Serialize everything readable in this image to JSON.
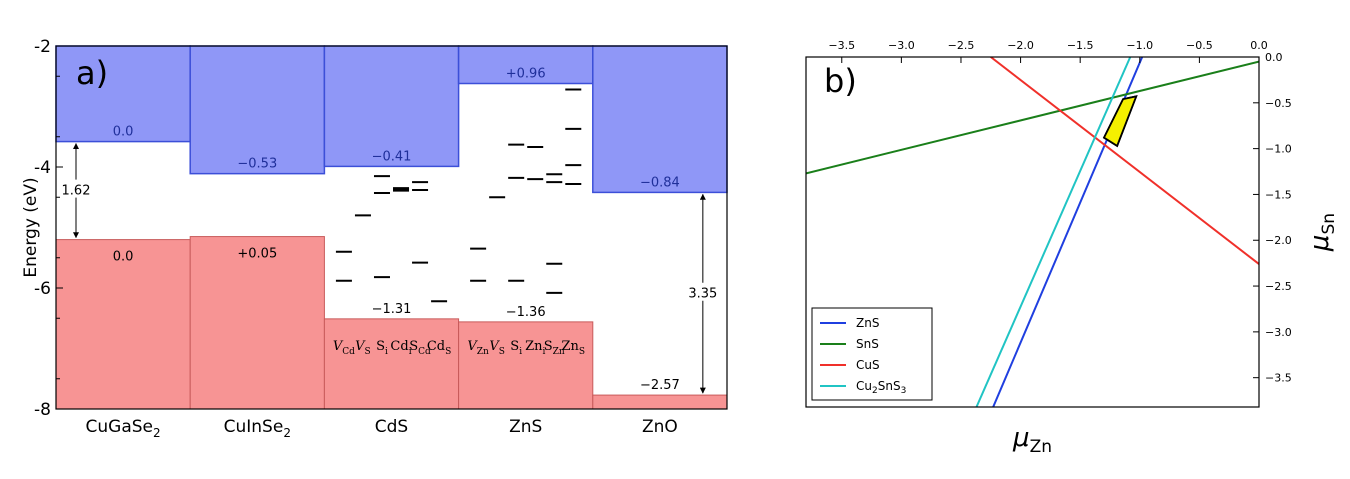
{
  "chart_data": [
    {
      "type": "bar",
      "panel_label": "a)",
      "ylabel": "Energy (eV)",
      "ylim": [
        -8,
        -2
      ],
      "yticks": [
        "-8",
        "-6",
        "-4",
        "-2"
      ],
      "grid": false,
      "colors": {
        "cb": "#8f97f7",
        "cb_edge": "#3c4fd8",
        "vb": "#f79494",
        "vb_edge": "#c85a5a"
      },
      "materials": [
        {
          "name": "CuGaSe",
          "sub": "2",
          "cb": -3.58,
          "vb": -5.2,
          "cb_label": "0.0",
          "vb_label": "0.0"
        },
        {
          "name": "CuInSe",
          "sub": "2",
          "cb": -4.11,
          "vb": -5.15,
          "cb_label": "−0.53",
          "vb_label": "+0.05"
        },
        {
          "name": "CdS",
          "sub": "",
          "cb": -3.99,
          "vb": -6.51,
          "cb_label": "−0.41",
          "vb_label": "−1.31"
        },
        {
          "name": "ZnS",
          "sub": "",
          "cb": -2.62,
          "vb": -6.56,
          "cb_label": "+0.96",
          "vb_label": "−1.36"
        },
        {
          "name": "ZnO",
          "sub": "",
          "cb": -4.42,
          "vb": -7.77,
          "cb_label": "−0.84",
          "vb_label": "−2.57"
        }
      ],
      "gap_annotations": [
        {
          "label": "1.62",
          "material": 0,
          "from": -3.58,
          "to": -5.2
        },
        {
          "label": "3.35",
          "material": 4,
          "from": -4.42,
          "to": -7.77
        }
      ],
      "defect_levels": [
        {
          "material": 2,
          "slot": 0,
          "levels": [
            -5.4,
            -5.88
          ]
        },
        {
          "material": 2,
          "slot": 1,
          "levels": [
            -4.8
          ]
        },
        {
          "material": 2,
          "slot": 2,
          "levels": [
            -4.15,
            -4.43,
            -5.82
          ]
        },
        {
          "material": 2,
          "slot": 3,
          "levels": [
            -4.35,
            -4.37,
            -4.39
          ]
        },
        {
          "material": 2,
          "slot": 4,
          "levels": [
            -4.25,
            -4.38,
            -5.58
          ]
        },
        {
          "material": 2,
          "slot": 5,
          "levels": [
            -6.22
          ]
        },
        {
          "material": 3,
          "slot": 0,
          "levels": [
            -5.35,
            -5.88
          ]
        },
        {
          "material": 3,
          "slot": 1,
          "levels": [
            -4.5
          ]
        },
        {
          "material": 3,
          "slot": 2,
          "levels": [
            -3.63,
            -4.18,
            -5.88
          ]
        },
        {
          "material": 3,
          "slot": 3,
          "levels": [
            -3.67,
            -4.2
          ]
        },
        {
          "material": 3,
          "slot": 4,
          "levels": [
            -4.12,
            -4.25,
            -5.6,
            -6.08
          ]
        },
        {
          "material": 3,
          "slot": 5,
          "levels": [
            -2.72,
            -3.37,
            -3.97,
            -4.28
          ]
        }
      ],
      "defect_labels": [
        {
          "material": 2,
          "items": [
            {
              "text": "V",
              "sub": "Cd",
              "italic": true
            },
            {
              "text": "V",
              "sub": "S",
              "italic": true
            },
            {
              "text": "S",
              "sub": "i",
              "italic": false
            },
            {
              "text": "Cd",
              "sub": "i",
              "italic": false
            },
            {
              "text": "S",
              "sub": "Cd",
              "italic": false
            },
            {
              "text": "Cd",
              "sub": "S",
              "italic": false
            }
          ]
        },
        {
          "material": 3,
          "items": [
            {
              "text": "V",
              "sub": "Zn",
              "italic": true
            },
            {
              "text": "V",
              "sub": "S",
              "italic": true
            },
            {
              "text": "S",
              "sub": "i",
              "italic": false
            },
            {
              "text": "Zn",
              "sub": "i",
              "italic": false
            },
            {
              "text": "S",
              "sub": "Zn",
              "italic": false
            },
            {
              "text": "Zn",
              "sub": "S",
              "italic": false
            }
          ]
        }
      ]
    },
    {
      "type": "line",
      "panel_label": "b)",
      "xlabel": {
        "main": "μ",
        "sub": "Zn"
      },
      "ylabel": {
        "main": "μ",
        "sub": "Sn"
      },
      "xlim": [
        -3.8,
        0.0
      ],
      "ylim": [
        -3.82,
        0.0
      ],
      "xticks": [
        {
          "v": -3.5,
          "label": "−3.5"
        },
        {
          "v": -3.0,
          "label": "−3.0"
        },
        {
          "v": -2.5,
          "label": "−2.5"
        },
        {
          "v": -2.0,
          "label": "−2.0"
        },
        {
          "v": -1.5,
          "label": "−1.5"
        },
        {
          "v": -1.0,
          "label": "−1.0"
        },
        {
          "v": -0.5,
          "label": "−0.5"
        },
        {
          "v": 0.0,
          "label": "0.0"
        }
      ],
      "yticks": [
        {
          "v": 0.0,
          "label": "0.0"
        },
        {
          "v": -0.5,
          "label": "−0.5"
        },
        {
          "v": -1.0,
          "label": "−1.0"
        },
        {
          "v": -1.5,
          "label": "−1.5"
        },
        {
          "v": -2.0,
          "label": "−2.0"
        },
        {
          "v": -2.5,
          "label": "−2.5"
        },
        {
          "v": -3.0,
          "label": "−3.0"
        },
        {
          "v": -3.5,
          "label": "−3.5"
        }
      ],
      "x_axis_position": "top",
      "y_axis_position": "right",
      "legend_position": "bottom-left",
      "series": [
        {
          "name": "ZnS",
          "sub": "",
          "name2": "",
          "sub2": "",
          "color": "#1f3fe0",
          "x": [
            -2.23,
            -0.98
          ],
          "y": [
            -3.82,
            0.0
          ]
        },
        {
          "name": "SnS",
          "sub": "",
          "name2": "",
          "sub2": "",
          "color": "#1a7f1a",
          "x": [
            -3.8,
            0.0
          ],
          "y": [
            -1.27,
            -0.05
          ]
        },
        {
          "name": "CuS",
          "sub": "",
          "name2": "",
          "sub2": "",
          "color": "#f0302a",
          "x": [
            -2.25,
            0.0
          ],
          "y": [
            0.0,
            -2.26
          ]
        },
        {
          "name": "Cu",
          "sub": "2",
          "name2": "SnS",
          "sub2": "3",
          "color": "#20c4c4",
          "x": [
            -2.37,
            -1.08
          ],
          "y": [
            -3.82,
            0.0
          ]
        }
      ],
      "region": {
        "color": "#f5f000",
        "x": [
          -1.3,
          -1.14,
          -1.03,
          -1.19
        ],
        "y": [
          -0.88,
          -0.46,
          -0.43,
          -0.97
        ]
      }
    }
  ]
}
